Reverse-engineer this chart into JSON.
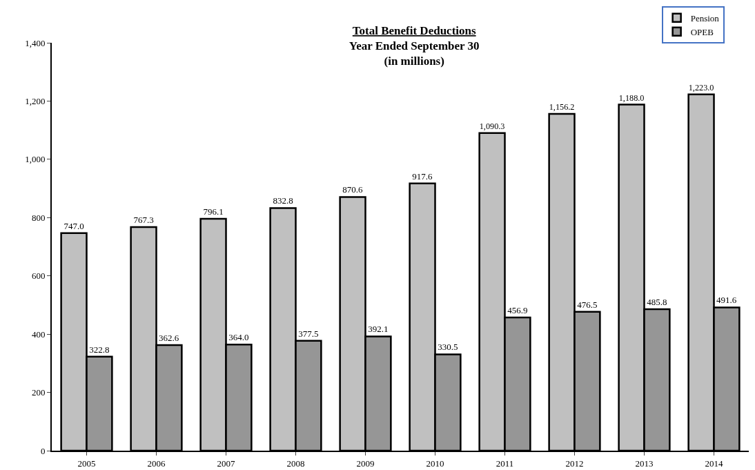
{
  "chart_data": {
    "type": "bar",
    "title": "Total Benefit Deductions",
    "subtitle": "Year Ended September 30\n(in millions)",
    "categories": [
      "2005",
      "2006",
      "2007",
      "2008",
      "2009",
      "2010",
      "2011",
      "2012",
      "2013",
      "2014"
    ],
    "series": [
      {
        "name": "Pension",
        "color": "#c0c0c0",
        "values": [
          747.0,
          767.3,
          796.1,
          832.8,
          870.6,
          917.6,
          1090.3,
          1156.2,
          1188.0,
          1223.0
        ],
        "value_labels": [
          "747.0",
          "767.3",
          "796.1",
          "832.8",
          "870.6",
          "917.6",
          "1,090.3",
          "1,156.2",
          "1,188.0",
          "1,223.0"
        ]
      },
      {
        "name": "OPEB",
        "color": "#969696",
        "values": [
          322.8,
          362.6,
          364.0,
          377.5,
          392.1,
          330.5,
          456.9,
          476.5,
          485.8,
          491.6
        ],
        "value_labels": [
          "322.8",
          "362.6",
          "364.0",
          "377.5",
          "392.1",
          "330.5",
          "456.9",
          "476.5",
          "485.8",
          "491.6"
        ]
      }
    ],
    "ylim": [
      0,
      1400
    ],
    "yticks": [
      0,
      200,
      400,
      600,
      800,
      {
        "value": 1000,
        "label": "1,000"
      },
      {
        "value": 1200,
        "label": "1,200"
      },
      {
        "value": 1400,
        "label": "1,400"
      }
    ],
    "grid": false,
    "legend": "top right"
  }
}
